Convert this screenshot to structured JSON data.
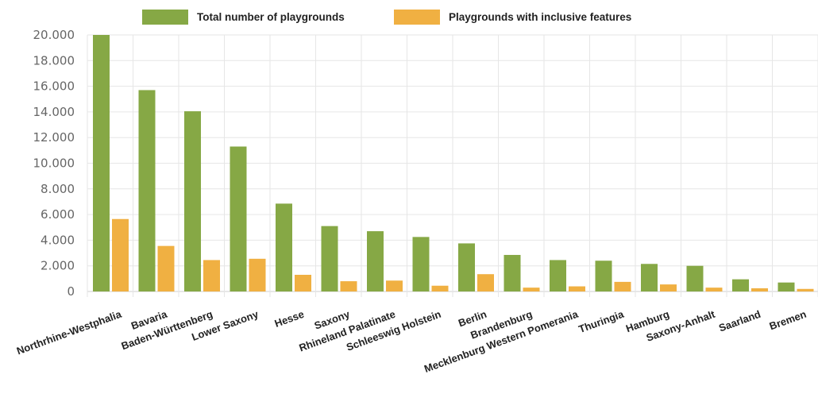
{
  "chart_data": {
    "type": "bar",
    "categories": [
      "Northrhine-Westphalia",
      "Bavaria",
      "Baden-Württenberg",
      "Lower Saxony",
      "Hesse",
      "Saxony",
      "Rhineland Palatinate",
      "Schleeswig Holstein",
      "Berlin",
      "Brandenburg",
      "Mecklenburg Western Pomerania",
      "Thuringia",
      "Hamburg",
      "Saxony-Anhalt",
      "Saarland",
      "Bremen"
    ],
    "series": [
      {
        "name": "Total number of playgrounds",
        "color": "#86a845",
        "values": [
          20000,
          15700,
          14050,
          11300,
          6850,
          5100,
          4700,
          4250,
          3750,
          2850,
          2450,
          2400,
          2150,
          2000,
          950,
          700
        ]
      },
      {
        "name": "Playgrounds with inclusive features",
        "color": "#f0b042",
        "values": [
          5650,
          3550,
          2450,
          2550,
          1300,
          800,
          850,
          450,
          1350,
          300,
          400,
          750,
          550,
          300,
          250,
          200
        ]
      }
    ],
    "yticks": [
      "20.000",
      "18.000",
      "16.000",
      "14.000",
      "12.000",
      "10.000",
      "8.000",
      "6.000",
      "4.000",
      "2.000",
      "0"
    ],
    "ylim": [
      0,
      20000
    ],
    "grid": true,
    "legend_position": "top"
  }
}
